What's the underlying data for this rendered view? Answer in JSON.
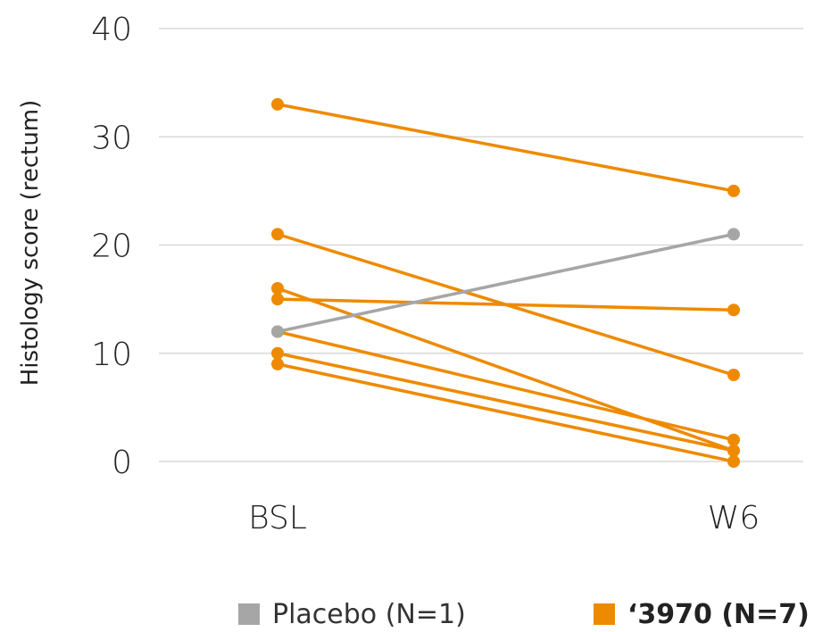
{
  "chart_data": {
    "type": "line",
    "categories": [
      "BSL",
      "W6"
    ],
    "ylabel": "Histology score (rectum)",
    "ylim": [
      0,
      40
    ],
    "yticks": [
      0,
      10,
      20,
      30,
      40
    ],
    "grid": true,
    "legend_position": "bottom",
    "series": [
      {
        "name": "Placebo (N=1)",
        "color": "#a6a6a6",
        "lines": [
          [
            12,
            21
          ]
        ]
      },
      {
        "name": "‘3970 (N=7)",
        "color": "#ee8a00",
        "lines": [
          [
            33,
            25
          ],
          [
            21,
            8
          ],
          [
            16,
            1
          ],
          [
            15,
            14
          ],
          [
            12,
            2
          ],
          [
            10,
            1
          ],
          [
            9,
            0
          ]
        ]
      }
    ]
  }
}
